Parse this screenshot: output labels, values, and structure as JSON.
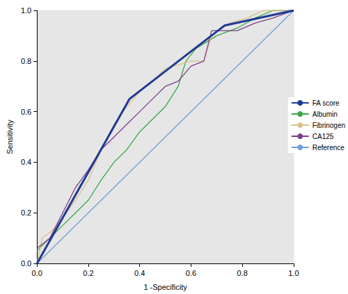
{
  "chart_data": {
    "type": "line",
    "x_label": "1 -Specificity",
    "y_label": "Sensitivity",
    "xlim": [
      0,
      1
    ],
    "ylim": [
      0,
      1
    ],
    "xticks": [
      {
        "value": 0,
        "label": "0.0"
      },
      {
        "value": 0.2,
        "label": "0.2"
      },
      {
        "value": 0.4,
        "label": "0.4"
      },
      {
        "value": 0.6,
        "label": "0.6"
      },
      {
        "value": 0.8,
        "label": "0.8"
      },
      {
        "value": 1,
        "label": "1.0"
      }
    ],
    "yticks": [
      {
        "value": 0,
        "label": "0.0"
      },
      {
        "value": 0.2,
        "label": "0.2"
      },
      {
        "value": 0.4,
        "label": "0.4"
      },
      {
        "value": 0.6,
        "label": "0.6"
      },
      {
        "value": 0.8,
        "label": "0.8"
      },
      {
        "value": 1,
        "label": "1.0"
      }
    ],
    "grid": false,
    "legend": "right",
    "series": [
      {
        "name": "FA score",
        "color": "#1f3a93",
        "line_style": "solid",
        "x": [
          0,
          0.36,
          0.73,
          1
        ],
        "values": [
          0,
          0.65,
          0.94,
          1
        ]
      },
      {
        "name": "Albumin",
        "color": "#3aa64a",
        "line_style": "solid",
        "x": [
          0,
          0.05,
          0.1,
          0.15,
          0.2,
          0.25,
          0.3,
          0.35,
          0.4,
          0.45,
          0.5,
          0.55,
          0.58,
          0.62,
          0.7,
          0.78,
          0.85,
          0.92,
          1
        ],
        "values": [
          0.05,
          0.1,
          0.15,
          0.2,
          0.25,
          0.33,
          0.4,
          0.45,
          0.52,
          0.57,
          0.62,
          0.7,
          0.8,
          0.85,
          0.9,
          0.93,
          0.97,
          1,
          1
        ]
      },
      {
        "name": "Fibrinogen",
        "color": "#d8c08a",
        "line_style": "solid",
        "x": [
          0,
          0.02,
          0.06,
          0.1,
          0.15,
          0.2,
          0.25,
          0.3,
          0.35,
          0.4,
          0.45,
          0.5,
          0.6,
          0.65,
          0.68,
          0.75,
          0.82,
          0.88,
          1
        ],
        "values": [
          0,
          0.1,
          0.13,
          0.18,
          0.25,
          0.33,
          0.45,
          0.55,
          0.62,
          0.68,
          0.72,
          0.77,
          0.8,
          0.8,
          0.9,
          0.95,
          0.97,
          1,
          1
        ]
      },
      {
        "name": "CA125",
        "color": "#7b3f8a",
        "line_style": "solid",
        "x": [
          0,
          0.05,
          0.1,
          0.15,
          0.2,
          0.25,
          0.3,
          0.35,
          0.4,
          0.45,
          0.5,
          0.55,
          0.6,
          0.65,
          0.68,
          0.72,
          0.78,
          0.85,
          0.92,
          1
        ],
        "values": [
          0.06,
          0.1,
          0.2,
          0.3,
          0.37,
          0.45,
          0.5,
          0.55,
          0.6,
          0.65,
          0.7,
          0.72,
          0.78,
          0.8,
          0.92,
          0.92,
          0.92,
          0.95,
          0.97,
          1
        ]
      },
      {
        "name": "Reference",
        "color": "#6f9fd8",
        "line_style": "solid",
        "x": [
          0,
          1
        ],
        "values": [
          0,
          1
        ]
      }
    ]
  }
}
